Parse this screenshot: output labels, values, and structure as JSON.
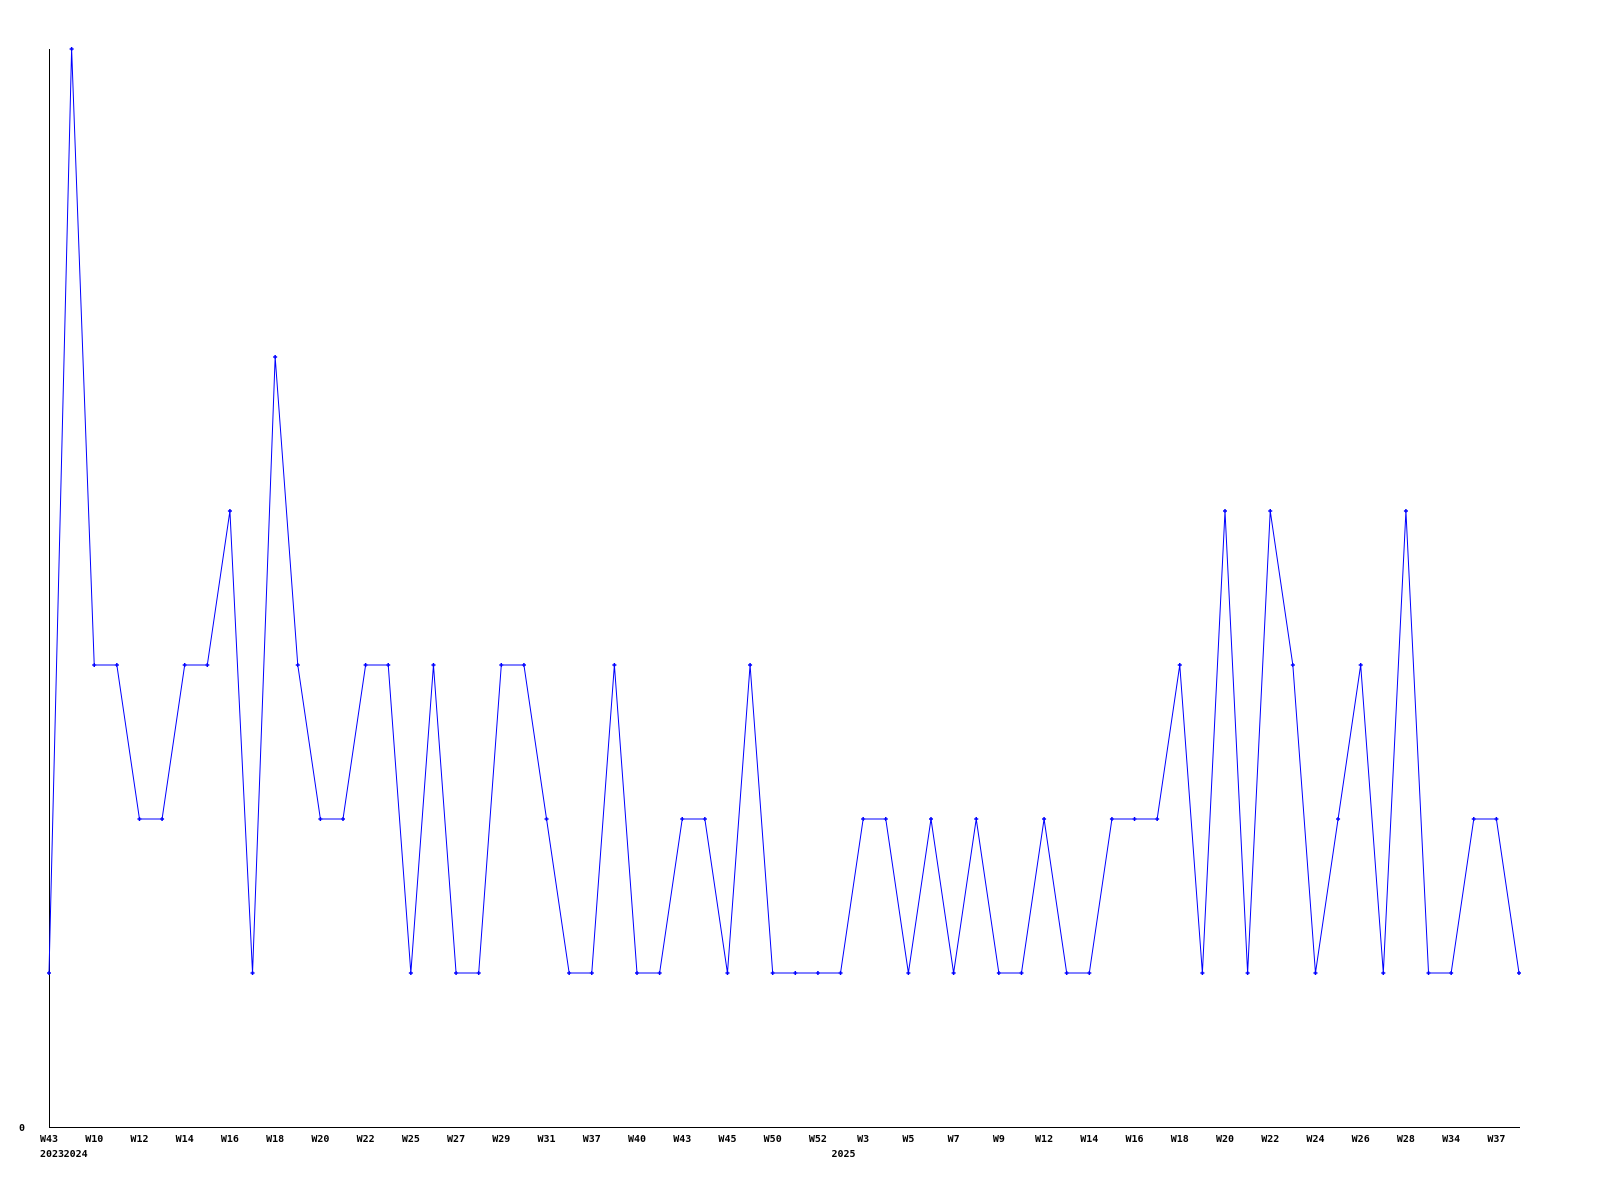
{
  "chart_data": {
    "type": "line",
    "title": "",
    "xlabel": "",
    "ylabel": "",
    "ylim": [
      0,
      7
    ],
    "grid": false,
    "legend": "none",
    "y_tick_labels": [
      "0"
    ],
    "x_tick_labels": [
      "W43",
      "",
      "W10",
      "",
      "W12",
      "",
      "W14",
      "",
      "W16",
      "",
      "W18",
      "",
      "W20",
      "",
      "W22",
      "",
      "W25",
      "",
      "W27",
      "",
      "W29",
      "",
      "W31",
      "",
      "W37",
      "",
      "W40",
      "",
      "W43",
      "",
      "W45",
      "",
      "W50",
      "",
      "W52",
      "",
      "W3",
      "",
      "W5",
      "",
      "W7",
      "",
      "W9",
      "",
      "W12",
      "",
      "W14",
      "",
      "W16",
      "",
      "W18",
      "",
      "W20",
      "",
      "W22",
      "",
      "W24",
      "",
      "W26",
      "",
      "W28",
      "",
      "W34",
      "",
      "W37",
      ""
    ],
    "year_labels": [
      {
        "index": 0,
        "label": "2023"
      },
      {
        "index": 1,
        "label": "2024"
      },
      {
        "index": 35,
        "label": "2025"
      }
    ],
    "series": [
      {
        "color": "#0000ff",
        "values": [
          1,
          7,
          3,
          3,
          2,
          2,
          3,
          3,
          4,
          1,
          5,
          3,
          2,
          2,
          3,
          3,
          1,
          3,
          1,
          1,
          3,
          3,
          2,
          1,
          1,
          3,
          1,
          1,
          2,
          2,
          1,
          3,
          1,
          1,
          1,
          1,
          2,
          2,
          1,
          2,
          1,
          2,
          1,
          1,
          2,
          1,
          1,
          2,
          2,
          2,
          3,
          1,
          4,
          1,
          4,
          3,
          1,
          2,
          3,
          1,
          4,
          1,
          1,
          2,
          2,
          1
        ]
      }
    ],
    "axis_color": "#000000"
  }
}
